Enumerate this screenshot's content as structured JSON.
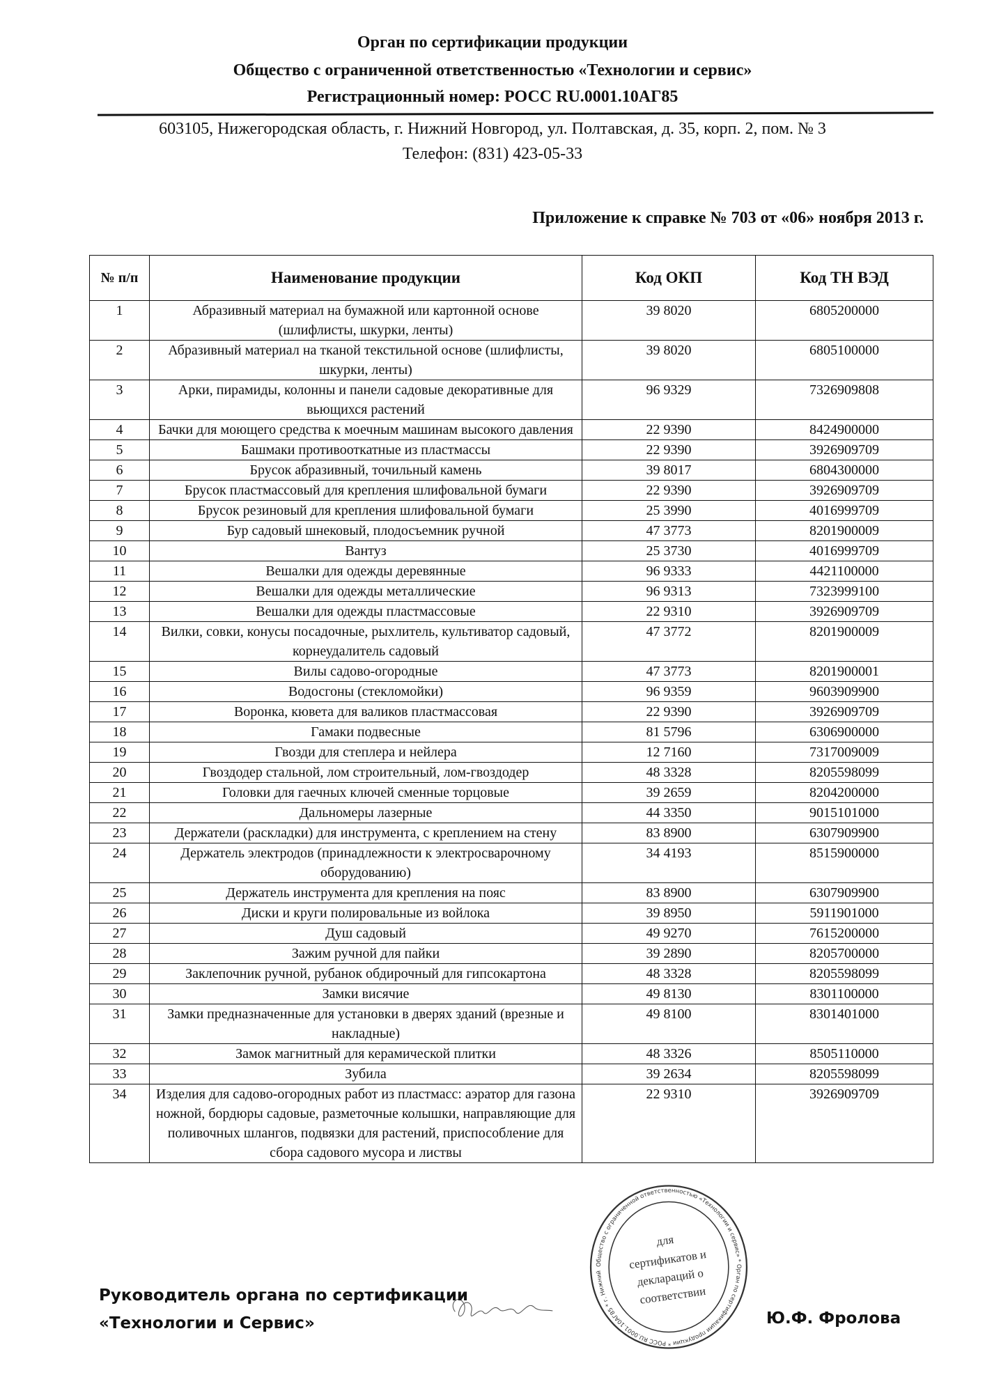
{
  "header": {
    "line1": "Орган по сертификации продукции",
    "line2": "Общество с ограниченной ответственностью «Технологии и сервис»",
    "line3": "Регистрационный номер: РОСС RU.0001.10АГ85",
    "address": "603105, Нижегородская область, г. Нижний Новгород, ул. Полтавская, д. 35, корп. 2, пом. № 3",
    "phone": "Телефон: (831) 423-05-33"
  },
  "appendix_title": "Приложение к справке № 703 от «06» ноября 2013 г.",
  "table": {
    "columns": [
      "№ п/п",
      "Наименование продукции",
      "Код ОКП",
      "Код ТН ВЭД"
    ],
    "rows": [
      [
        "1",
        "Абразивный материал на бумажной или картонной основе (шлифлисты, шкурки, ленты)",
        "39 8020",
        "6805200000"
      ],
      [
        "2",
        "Абразивный материал на тканой текстильной основе (шлифлисты, шкурки, ленты)",
        "39 8020",
        "6805100000"
      ],
      [
        "3",
        "Арки, пирамиды, колонны и панели садовые декоративные для вьющихся растений",
        "96 9329",
        "7326909808"
      ],
      [
        "4",
        "Бачки для моющего средства к моечным машинам высокого давления",
        "22 9390",
        "8424900000"
      ],
      [
        "5",
        "Башмаки противооткатные из пластмассы",
        "22 9390",
        "3926909709"
      ],
      [
        "6",
        "Брусок абразивный, точильный камень",
        "39 8017",
        "6804300000"
      ],
      [
        "7",
        "Брусок пластмассовый для крепления шлифовальной бумаги",
        "22 9390",
        "3926909709"
      ],
      [
        "8",
        "Брусок резиновый для крепления шлифовальной бумаги",
        "25 3990",
        "4016999709"
      ],
      [
        "9",
        "Бур садовый шнековый, плодосъемник ручной",
        "47 3773",
        "8201900009"
      ],
      [
        "10",
        "Вантуз",
        "25 3730",
        "4016999709"
      ],
      [
        "11",
        "Вешалки для одежды деревянные",
        "96 9333",
        "4421100000"
      ],
      [
        "12",
        "Вешалки для одежды металлические",
        "96 9313",
        "7323999100"
      ],
      [
        "13",
        "Вешалки для одежды пластмассовые",
        "22 9310",
        "3926909709"
      ],
      [
        "14",
        "Вилки, совки, конусы посадочные, рыхлитель, культиватор садовый, корнеудалитель садовый",
        "47 3772",
        "8201900009"
      ],
      [
        "15",
        "Вилы садово-огородные",
        "47 3773",
        "8201900001"
      ],
      [
        "16",
        "Водосгоны (стекломойки)",
        "96 9359",
        "9603909900"
      ],
      [
        "17",
        "Воронка, кювета для валиков пластмассовая",
        "22 9390",
        "3926909709"
      ],
      [
        "18",
        "Гамаки подвесные",
        "81 5796",
        "6306900000"
      ],
      [
        "19",
        "Гвозди для степлера и нейлера",
        "12 7160",
        "7317009009"
      ],
      [
        "20",
        "Гвоздодер стальной, лом строительный, лом-гвоздодер",
        "48 3328",
        "8205598099"
      ],
      [
        "21",
        "Головки для гаечных ключей сменные торцовые",
        "39 2659",
        "8204200000"
      ],
      [
        "22",
        "Дальномеры лазерные",
        "44 3350",
        "9015101000"
      ],
      [
        "23",
        "Держатели (раскладки) для инструмента, с креплением на стену",
        "83 8900",
        "6307909900"
      ],
      [
        "24",
        "Держатель электродов (принадлежности к электросварочному оборудованию)",
        "34 4193",
        "8515900000"
      ],
      [
        "25",
        "Держатель инструмента для крепления на пояс",
        "83 8900",
        "6307909900"
      ],
      [
        "26",
        "Диски и круги полировальные из войлока",
        "39 8950",
        "5911901000"
      ],
      [
        "27",
        "Душ садовый",
        "49 9270",
        "7615200000"
      ],
      [
        "28",
        "Зажим ручной для пайки",
        "39 2890",
        "8205700000"
      ],
      [
        "29",
        "Заклепочник ручной, рубанок обдирочный для гипсокартона",
        "48 3328",
        "8205598099"
      ],
      [
        "30",
        "Замки висячие",
        "49 8130",
        "8301100000"
      ],
      [
        "31",
        "Замки предназначенные для установки в дверях зданий (врезные и накладные)",
        "49 8100",
        "8301401000"
      ],
      [
        "32",
        "Замок магнитный для керамической плитки",
        "48 3326",
        "8505110000"
      ],
      [
        "33",
        "Зубила",
        "39 2634",
        "8205598099"
      ],
      [
        "34",
        "Изделия для садово-огородных работ из пластмасс: аэратор для газона ножной, бордюры садовые, разметочные колышки, направляющие для поливочных шлангов, подвязки для растений, приспособление для сбора садового мусора и листвы",
        "22 9310",
        "3926909709"
      ]
    ]
  },
  "footer": {
    "position_line1": "Руководитель органа по сертификации",
    "position_line2": "«Технологии и Сервис»",
    "signer": "Ю.Ф. Фролова"
  },
  "stamp": {
    "inner_text": [
      "для",
      "сертификатов и",
      "деклараций о",
      "соответствии"
    ],
    "ring_text": "Общество с ограниченной ответственностью «Технологии и сервис» * Орган по сертификации продукции * РОСС RU.0001.10АГ85 * г. Нижний Новгород"
  }
}
